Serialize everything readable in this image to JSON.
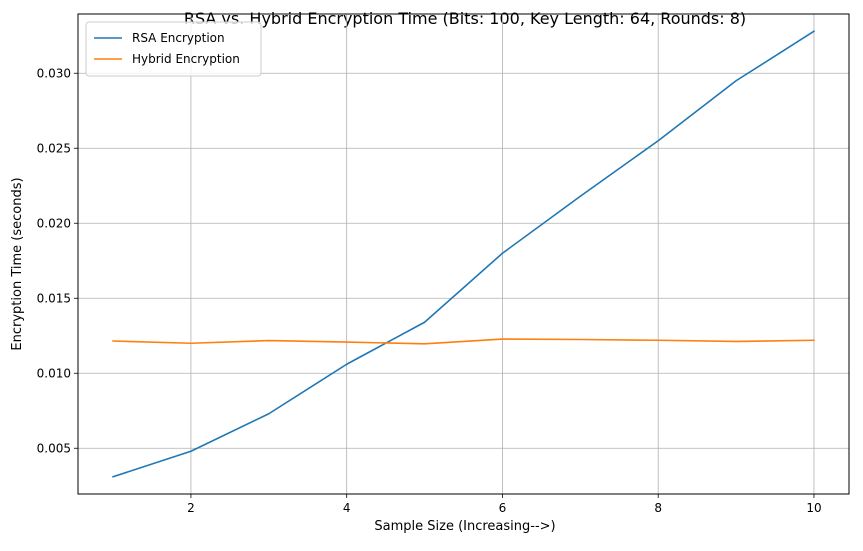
{
  "chart_data": {
    "type": "line",
    "title": "RSA vs. Hybrid Encryption Time (Bits: 100, Key Length: 64, Rounds: 8)",
    "xlabel": "Sample Size (Increasing-->)",
    "ylabel": "Encryption Time (seconds)",
    "xlim": [
      0.55,
      10.45
    ],
    "ylim": [
      0.00195,
      0.03395
    ],
    "xticks": [
      2,
      4,
      6,
      8,
      10
    ],
    "xtick_labels": [
      "2",
      "4",
      "6",
      "8",
      "10"
    ],
    "yticks": [
      0.005,
      0.01,
      0.015,
      0.02,
      0.025,
      0.03
    ],
    "ytick_labels": [
      "0.005",
      "0.010",
      "0.015",
      "0.020",
      "0.025",
      "0.030"
    ],
    "grid": true,
    "legend_position": "top-left",
    "x": [
      1,
      2,
      3,
      4,
      5,
      6,
      7,
      8,
      9,
      10
    ],
    "series": [
      {
        "name": "RSA Encryption",
        "color": "#1f77b4",
        "values": [
          0.0031,
          0.0048,
          0.0073,
          0.0106,
          0.0134,
          0.018,
          0.0218,
          0.0255,
          0.0295,
          0.0328
        ]
      },
      {
        "name": "Hybrid Encryption",
        "color": "#ff7f0e",
        "values": [
          0.01215,
          0.012,
          0.01218,
          0.01208,
          0.01196,
          0.01228,
          0.01225,
          0.0122,
          0.01212,
          0.0122
        ]
      }
    ]
  }
}
